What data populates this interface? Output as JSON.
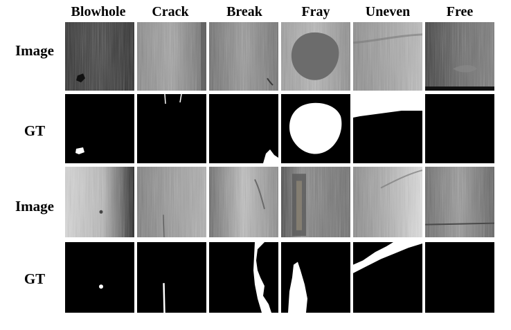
{
  "columns": [
    "Blowhole",
    "Crack",
    "Break",
    "Fray",
    "Uneven",
    "Free"
  ],
  "rows": [
    "Image",
    "GT",
    "Image",
    "GT"
  ]
}
